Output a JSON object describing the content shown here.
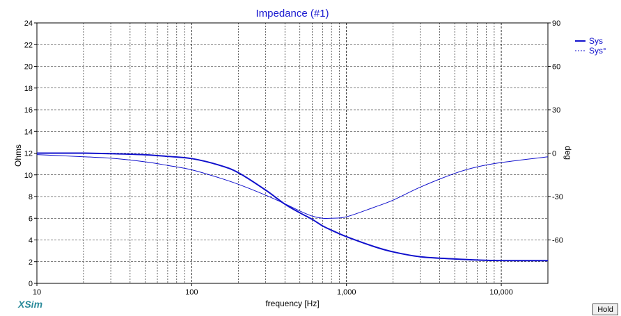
{
  "app": {
    "logo_text": "XSim",
    "hold_label": "Hold"
  },
  "colors": {
    "series": "#1010cc",
    "title": "#1a1ad0",
    "grid": "#000000",
    "axis_text": "#000000"
  },
  "chart_data": {
    "type": "line",
    "title": "Impedance (#1)",
    "xlabel": "frequency [Hz]",
    "ylabel_left": "Ohms",
    "ylabel_right": "deg",
    "x_scale": "log",
    "xlim": [
      10,
      20000
    ],
    "ylim_left": [
      0,
      24
    ],
    "ylim_right": [
      -90,
      90
    ],
    "x_major_ticks": [
      10,
      100,
      1000,
      10000
    ],
    "x_major_tick_labels": [
      "10",
      "100",
      "1,000",
      "10,000"
    ],
    "x_minor_ticks": [
      20,
      30,
      40,
      50,
      60,
      70,
      80,
      90,
      200,
      300,
      400,
      500,
      600,
      700,
      800,
      900,
      2000,
      3000,
      4000,
      5000,
      6000,
      7000,
      8000,
      9000
    ],
    "y_left_ticks": [
      0,
      2,
      4,
      6,
      8,
      10,
      12,
      14,
      16,
      18,
      20,
      22,
      24
    ],
    "y_right_ticks": [
      -60,
      -30,
      0,
      30,
      60,
      90
    ],
    "grid": true,
    "legend_position": "top-right",
    "series": [
      {
        "name": "Sys",
        "axis": "left",
        "style": "solid",
        "x": [
          10,
          20,
          30,
          50,
          70,
          100,
          150,
          200,
          300,
          400,
          500,
          600,
          700,
          800,
          1000,
          1500,
          2000,
          3000,
          5000,
          7000,
          10000,
          20000
        ],
        "values": [
          12.0,
          12.0,
          11.95,
          11.85,
          11.7,
          11.5,
          10.9,
          10.2,
          8.6,
          7.3,
          6.5,
          5.9,
          5.3,
          4.9,
          4.3,
          3.4,
          2.9,
          2.45,
          2.25,
          2.15,
          2.1,
          2.1
        ]
      },
      {
        "name": "Sys°",
        "axis": "right",
        "style": "thin",
        "x": [
          10,
          20,
          30,
          50,
          70,
          100,
          150,
          200,
          300,
          400,
          500,
          600,
          700,
          800,
          1000,
          1500,
          2000,
          3000,
          5000,
          7000,
          10000,
          20000
        ],
        "values": [
          -1,
          -2.5,
          -3.5,
          -6,
          -8.5,
          -11.5,
          -17,
          -21.5,
          -29,
          -35,
          -40,
          -43.5,
          -45,
          -45,
          -44,
          -37.5,
          -32.5,
          -23.5,
          -14,
          -9.5,
          -6.5,
          -2.5
        ]
      }
    ]
  }
}
